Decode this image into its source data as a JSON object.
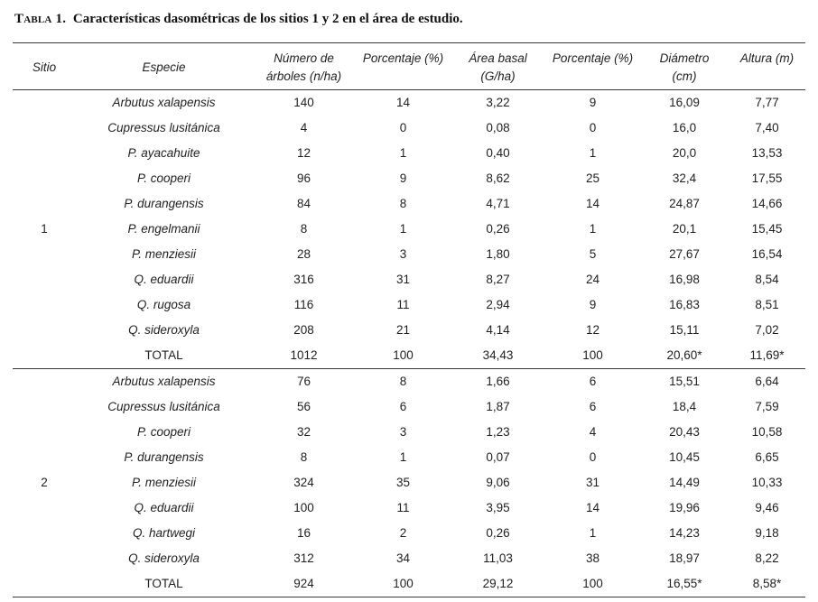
{
  "caption": {
    "label": "Tabla 1.",
    "text": "Características dasométricas de los sitios 1 y 2 en el área de estudio."
  },
  "table": {
    "headers": [
      {
        "id": "sitio",
        "line1": "Sitio",
        "line2": ""
      },
      {
        "id": "especie",
        "line1": "Especie",
        "line2": ""
      },
      {
        "id": "numero-arboles",
        "line1": "Número de",
        "line2": "árboles (n/ha)"
      },
      {
        "id": "porcentaje-arboles",
        "line1": "Porcentaje (%)",
        "line2": ""
      },
      {
        "id": "area-basal",
        "line1": "Área basal",
        "line2": "(G/ha)"
      },
      {
        "id": "porcentaje-area",
        "line1": "Porcentaje (%)",
        "line2": ""
      },
      {
        "id": "diametro",
        "line1": "Diámetro",
        "line2": "(cm)"
      },
      {
        "id": "altura",
        "line1": "Altura (m)",
        "line2": ""
      }
    ],
    "sections": [
      {
        "site": "1",
        "rows": [
          {
            "especie": "Arbutus xalapensis",
            "total": false,
            "values": [
              "140",
              "14",
              "3,22",
              "9",
              "16,09",
              "7,77"
            ]
          },
          {
            "especie": "Cupressus lusitánica",
            "total": false,
            "values": [
              "4",
              "0",
              "0,08",
              "0",
              "16,0",
              "7,40"
            ]
          },
          {
            "especie": "P. ayacahuite",
            "total": false,
            "values": [
              "12",
              "1",
              "0,40",
              "1",
              "20,0",
              "13,53"
            ]
          },
          {
            "especie": "P. cooperi",
            "total": false,
            "values": [
              "96",
              "9",
              "8,62",
              "25",
              "32,4",
              "17,55"
            ]
          },
          {
            "especie": "P. durangensis",
            "total": false,
            "values": [
              "84",
              "8",
              "4,71",
              "14",
              "24,87",
              "14,66"
            ]
          },
          {
            "especie": "P. engelmanii",
            "total": false,
            "values": [
              "8",
              "1",
              "0,26",
              "1",
              "20,1",
              "15,45"
            ]
          },
          {
            "especie": "P. menziesii",
            "total": false,
            "values": [
              "28",
              "3",
              "1,80",
              "5",
              "27,67",
              "16,54"
            ]
          },
          {
            "especie": "Q. eduardii",
            "total": false,
            "values": [
              "316",
              "31",
              "8,27",
              "24",
              "16,98",
              "8,54"
            ]
          },
          {
            "especie": "Q. rugosa",
            "total": false,
            "values": [
              "116",
              "11",
              "2,94",
              "9",
              "16,83",
              "8,51"
            ]
          },
          {
            "especie": "Q. sideroxyla",
            "total": false,
            "values": [
              "208",
              "21",
              "4,14",
              "12",
              "15,11",
              "7,02"
            ]
          },
          {
            "especie": "TOTAL",
            "total": true,
            "values": [
              "1012",
              "100",
              "34,43",
              "100",
              "20,60*",
              "11,69*"
            ]
          }
        ]
      },
      {
        "site": "2",
        "rows": [
          {
            "especie": "Arbutus xalapensis",
            "total": false,
            "values": [
              "76",
              "8",
              "1,66",
              "6",
              "15,51",
              "6,64"
            ]
          },
          {
            "especie": "Cupressus lusitánica",
            "total": false,
            "values": [
              "56",
              "6",
              "1,87",
              "6",
              "18,4",
              "7,59"
            ]
          },
          {
            "especie": "P. cooperi",
            "total": false,
            "values": [
              "32",
              "3",
              "1,23",
              "4",
              "20,43",
              "10,58"
            ]
          },
          {
            "especie": "P. durangensis",
            "total": false,
            "values": [
              "8",
              "1",
              "0,07",
              "0",
              "10,45",
              "6,65"
            ]
          },
          {
            "especie": "P. menziesii",
            "total": false,
            "values": [
              "324",
              "35",
              "9,06",
              "31",
              "14,49",
              "10,33"
            ]
          },
          {
            "especie": "Q. eduardii",
            "total": false,
            "values": [
              "100",
              "11",
              "3,95",
              "14",
              "19,96",
              "9,46"
            ]
          },
          {
            "especie": "Q. hartwegi",
            "total": false,
            "values": [
              "16",
              "2",
              "0,26",
              "1",
              "14,23",
              "9,18"
            ]
          },
          {
            "especie": "Q. sideroxyla",
            "total": false,
            "values": [
              "312",
              "34",
              "11,03",
              "38",
              "18,97",
              "8,22"
            ]
          },
          {
            "especie": "TOTAL",
            "total": true,
            "values": [
              "924",
              "100",
              "29,12",
              "100",
              "16,55*",
              "8,58*"
            ]
          }
        ]
      }
    ]
  },
  "colors": {
    "text": "#1f1f1f",
    "rule": "#3a3a3a",
    "background": "#ffffff"
  }
}
